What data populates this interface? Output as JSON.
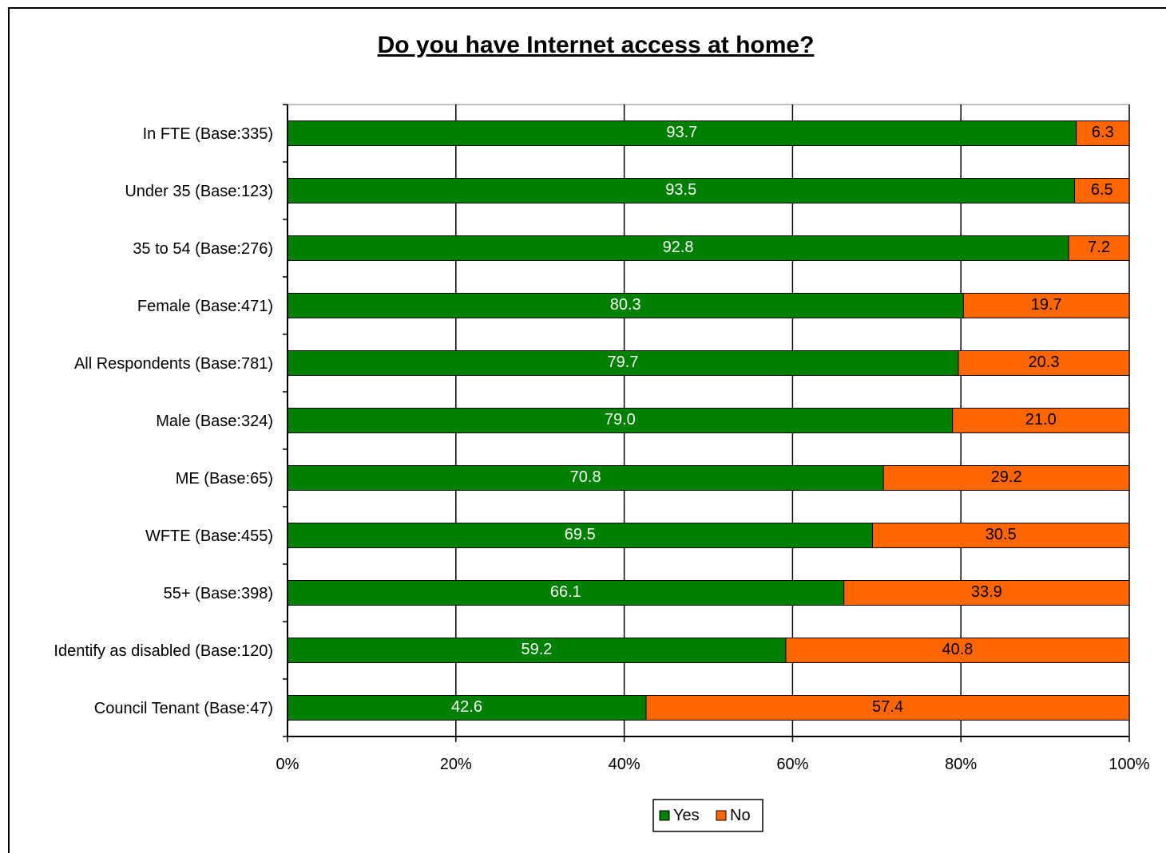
{
  "chart_data": {
    "type": "bar",
    "orientation": "horizontal",
    "stacked": true,
    "title": "Do you have Internet access at home?",
    "categories": [
      "In FTE (Base:335)",
      "Under 35 (Base:123)",
      "35 to 54 (Base:276)",
      "Female (Base:471)",
      "All Respondents (Base:781)",
      "Male (Base:324)",
      "ME (Base:65)",
      "WFTE (Base:455)",
      "55+ (Base:398)",
      "Identify as disabled (Base:120)",
      "Council Tenant (Base:47)"
    ],
    "series": [
      {
        "name": "Yes",
        "color": "#008000",
        "values": [
          93.7,
          93.5,
          92.8,
          80.3,
          79.7,
          79.0,
          70.8,
          69.5,
          66.1,
          59.2,
          42.6
        ],
        "labels": [
          "93.7",
          "93.5",
          "92.8",
          "80.3",
          "79.7",
          "79.0",
          "70.8",
          "69.5",
          "66.1",
          "59.2",
          "42.6"
        ]
      },
      {
        "name": "No",
        "color": "#ff6600",
        "values": [
          6.3,
          6.5,
          7.2,
          19.7,
          20.3,
          21.0,
          29.2,
          30.5,
          33.9,
          40.8,
          57.4
        ],
        "labels": [
          "6.3",
          "6.5",
          "7.2",
          "19.7",
          "20.3",
          "21.0",
          "29.2",
          "30.5",
          "33.9",
          "40.8",
          "57.4"
        ]
      }
    ],
    "xlim": [
      0,
      100
    ],
    "xticks": [
      0,
      20,
      40,
      60,
      80,
      100
    ],
    "xtick_labels": [
      "0%",
      "20%",
      "40%",
      "60%",
      "80%",
      "100%"
    ],
    "grid": true,
    "legend_position": "bottom-center"
  }
}
